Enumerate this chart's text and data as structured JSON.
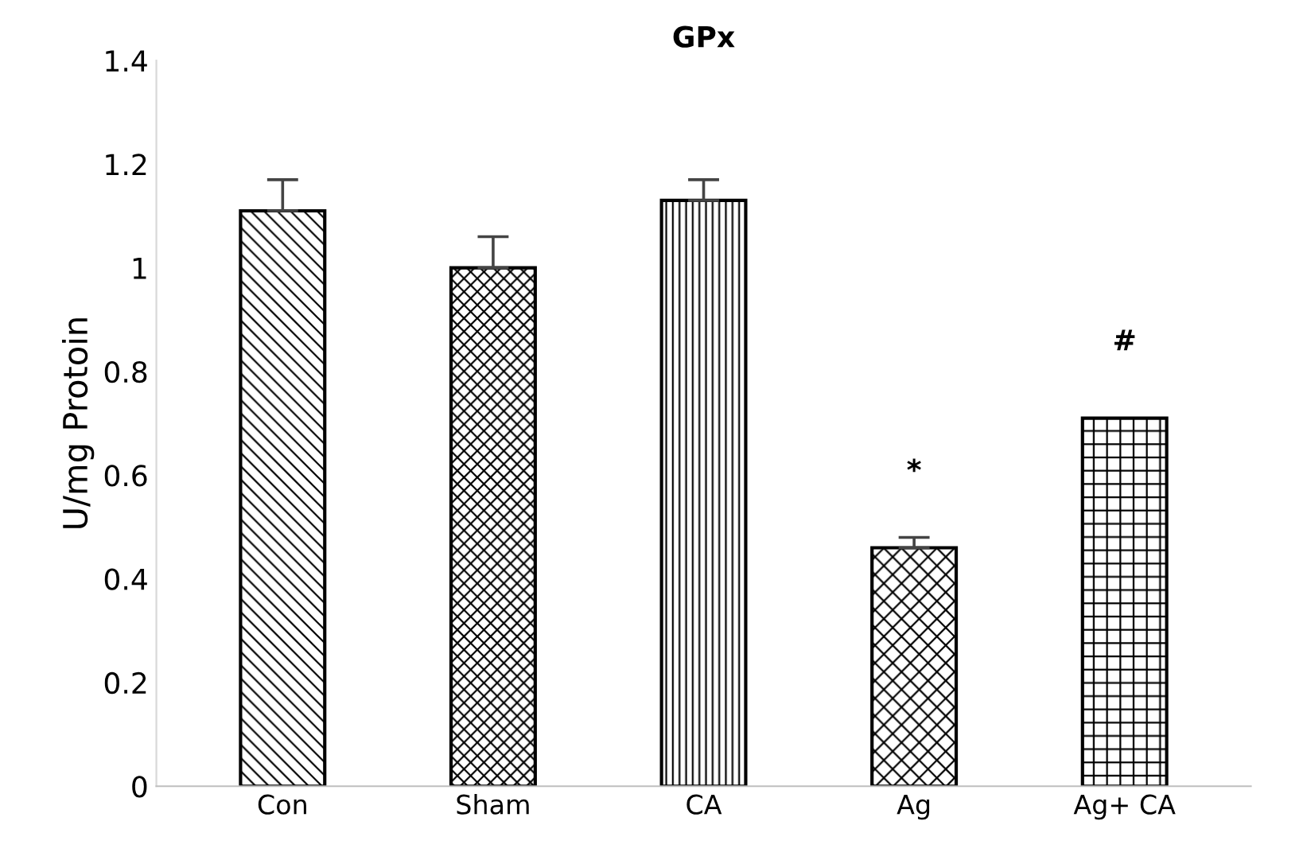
{
  "chart_data": {
    "type": "bar",
    "title": "GPx",
    "ylabel": "U/mg Protoin",
    "categories": [
      "Con",
      "Sham",
      "CA",
      "Ag",
      "Ag+ CA"
    ],
    "values": [
      1.11,
      1.0,
      1.13,
      0.46,
      0.71
    ],
    "errors": [
      0.06,
      0.06,
      0.04,
      0.02,
      null
    ],
    "colors": [
      "#000000",
      "#000000",
      "#000000",
      "#000000",
      "#000000"
    ],
    "ylim": [
      0,
      1.4
    ],
    "yticks": [
      0,
      0.2,
      0.4,
      0.6,
      0.8,
      1,
      1.2,
      1.4
    ],
    "grid": false,
    "legend": false,
    "annotations": [
      {
        "text": "*",
        "x": "Ag",
        "y": 0.46
      },
      {
        "text": "#",
        "x": "Ag+ CA",
        "y": 0.71
      }
    ]
  }
}
